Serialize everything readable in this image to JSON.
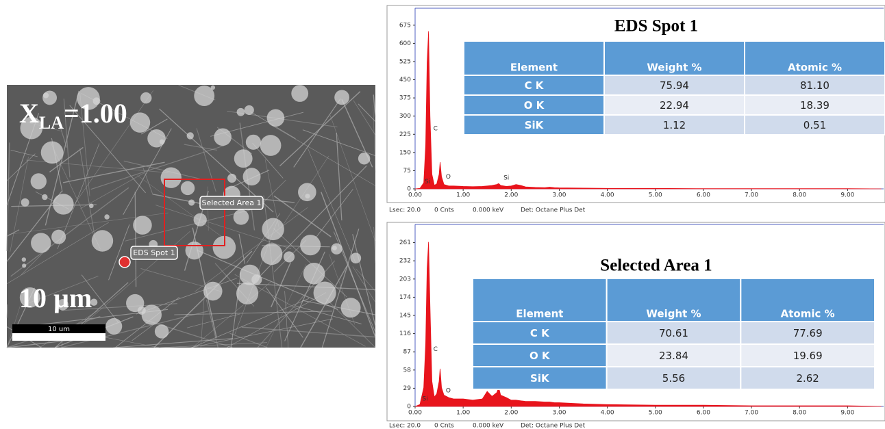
{
  "sem_image": {
    "label": [
      "X",
      "LA",
      "=1.00"
    ],
    "scale_text": "10 µm",
    "scale_bar_label": "10 um",
    "callouts": [
      "Selected Area 1",
      "EDS Spot 1"
    ]
  },
  "chart_data": [
    {
      "type": "area",
      "title": "EDS Spot 1",
      "color": "#e8141c",
      "x": [
        0,
        0.1,
        0.18,
        0.22,
        0.25,
        0.28,
        0.31,
        0.35,
        0.4,
        0.45,
        0.5,
        0.52,
        0.55,
        0.6,
        0.7,
        0.8,
        1.0,
        1.2,
        1.4,
        1.5,
        1.6,
        1.7,
        1.74,
        1.78,
        1.9,
        2.0,
        2.1,
        2.2,
        2.3,
        2.5,
        2.7,
        2.8,
        2.9,
        3.0,
        3.5,
        4.0,
        5.0,
        6.0,
        7.0,
        8.0,
        9.0,
        9.7
      ],
      "values": [
        0,
        2,
        25,
        180,
        520,
        650,
        300,
        60,
        15,
        20,
        60,
        110,
        50,
        18,
        12,
        12,
        10,
        9,
        10,
        12,
        14,
        18,
        22,
        14,
        10,
        12,
        18,
        14,
        8,
        6,
        5,
        7,
        5,
        4,
        3,
        2,
        2,
        1,
        1,
        1,
        1,
        0
      ],
      "xlim": [
        0,
        9.75
      ],
      "ylim": [
        0,
        745
      ],
      "xticks": [
        {
          "value": 0,
          "label": "0.00"
        },
        {
          "value": 1,
          "label": "1.00"
        },
        {
          "value": 2,
          "label": "2.00"
        },
        {
          "value": 3,
          "label": "3.00"
        },
        {
          "value": 4,
          "label": "4.00"
        },
        {
          "value": 5,
          "label": "5.00"
        },
        {
          "value": 6,
          "label": "6.00"
        },
        {
          "value": 7,
          "label": "7.00"
        },
        {
          "value": 8,
          "label": "8.00"
        },
        {
          "value": 9,
          "label": "9.00"
        }
      ],
      "yticks": [
        0,
        75,
        150,
        225,
        300,
        375,
        450,
        525,
        600,
        675
      ],
      "annotations": [
        {
          "text": "Si",
          "x": 0.2,
          "y": 30
        },
        {
          "text": "C",
          "x": 0.38,
          "y": 248
        },
        {
          "text": "O",
          "x": 0.64,
          "y": 50
        },
        {
          "text": "Si",
          "x": 1.84,
          "y": 45
        }
      ],
      "table": {
        "header": [
          "Element",
          "Weight %",
          "Atomic %"
        ],
        "rows": [
          [
            "C K",
            "75.94",
            "81.10"
          ],
          [
            "O K",
            "22.94",
            "18.39"
          ],
          [
            "SiK",
            "1.12",
            "0.51"
          ]
        ]
      },
      "footer": [
        "Lsec: 20.0",
        "0 Cnts",
        "0.000 keV",
        "Det: Octane Plus Det"
      ]
    },
    {
      "type": "area",
      "title": "Selected Area 1",
      "color": "#e8141c",
      "x": [
        0,
        0.1,
        0.18,
        0.22,
        0.25,
        0.28,
        0.31,
        0.35,
        0.4,
        0.45,
        0.5,
        0.52,
        0.55,
        0.6,
        0.7,
        0.8,
        1.0,
        1.2,
        1.4,
        1.5,
        1.6,
        1.7,
        1.74,
        1.78,
        1.9,
        2.0,
        2.1,
        2.2,
        2.3,
        2.5,
        2.7,
        2.8,
        2.9,
        3.0,
        3.5,
        4.0,
        5.0,
        6.0,
        7.0,
        8.0,
        9.0,
        9.7
      ],
      "values": [
        0,
        3,
        30,
        100,
        220,
        262,
        160,
        40,
        15,
        20,
        40,
        60,
        30,
        18,
        14,
        12,
        12,
        10,
        12,
        24,
        16,
        22,
        30,
        18,
        14,
        10,
        10,
        9,
        8,
        8,
        7,
        7,
        6,
        6,
        4,
        3,
        2,
        2,
        1,
        1,
        1,
        0
      ],
      "xlim": [
        0,
        9.75
      ],
      "ylim": [
        0,
        290
      ],
      "xticks": [
        {
          "value": 0,
          "label": "0.00"
        },
        {
          "value": 1,
          "label": "1.00"
        },
        {
          "value": 2,
          "label": "2.00"
        },
        {
          "value": 3,
          "label": "3.00"
        },
        {
          "value": 4,
          "label": "4.00"
        },
        {
          "value": 5,
          "label": "5.00"
        },
        {
          "value": 6,
          "label": "6.00"
        },
        {
          "value": 7,
          "label": "7.00"
        },
        {
          "value": 8,
          "label": "8.00"
        },
        {
          "value": 9,
          "label": "9.00"
        }
      ],
      "yticks": [
        0,
        29,
        58,
        87,
        116,
        145,
        174,
        203,
        232,
        261
      ],
      "annotations": [
        {
          "text": "Si",
          "x": 0.15,
          "y": 12
        },
        {
          "text": "C",
          "x": 0.38,
          "y": 91
        },
        {
          "text": "O",
          "x": 0.64,
          "y": 25
        }
      ],
      "table": {
        "header": [
          "Element",
          "Weight %",
          "Atomic %"
        ],
        "rows": [
          [
            "C K",
            "70.61",
            "77.69"
          ],
          [
            "O K",
            "23.84",
            "19.69"
          ],
          [
            "SiK",
            "5.56",
            "2.62"
          ]
        ]
      },
      "footer": [
        "Lsec: 20.0",
        "0 Cnts",
        "0.000 keV",
        "Det: Octane Plus Det"
      ]
    }
  ]
}
